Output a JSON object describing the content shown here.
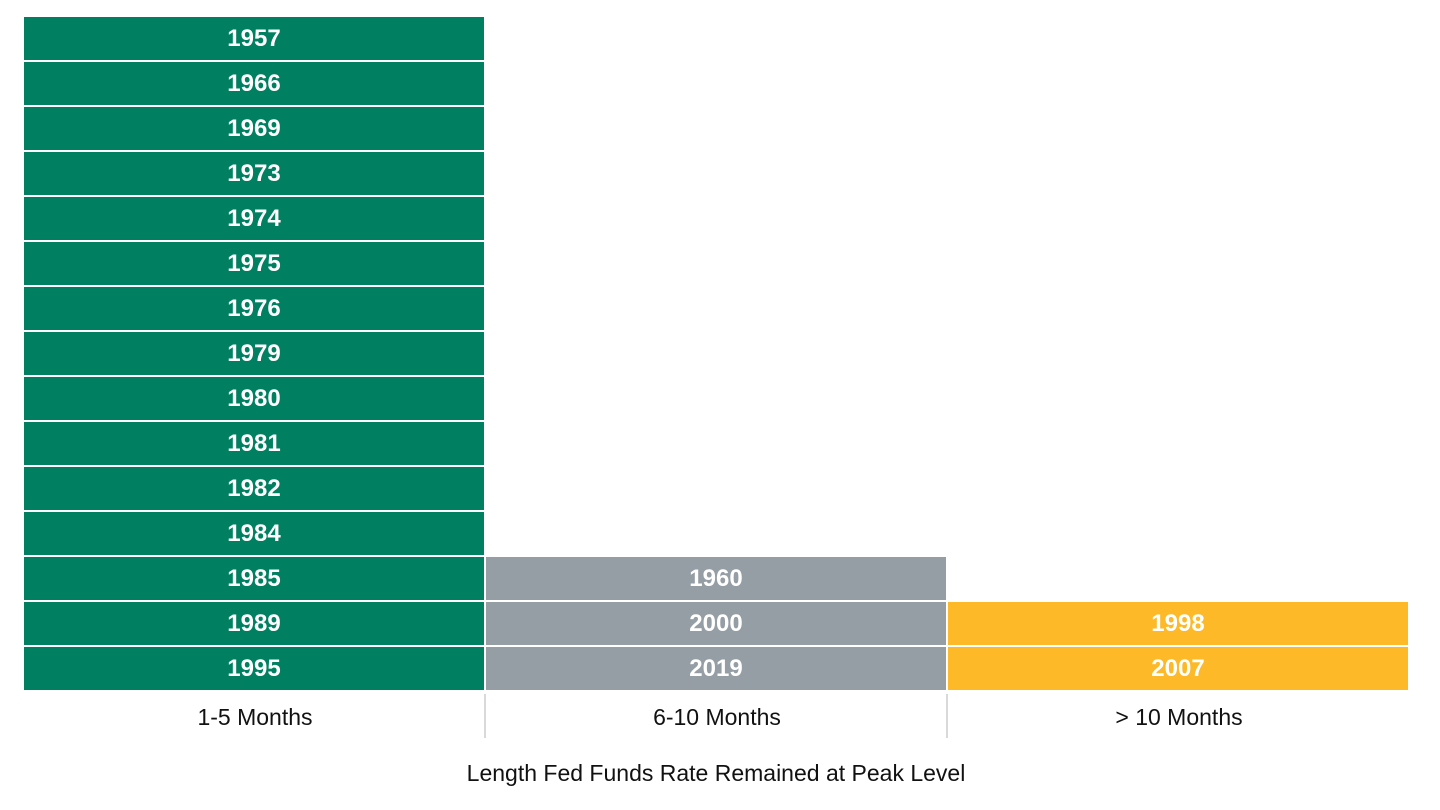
{
  "chart_data": {
    "type": "stacked-block",
    "xlabel": "Length Fed Funds Rate Remained at Peak Level",
    "categories": [
      {
        "name": "1-5 Months",
        "color": "#008060",
        "items": [
          "1957",
          "1966",
          "1969",
          "1973",
          "1974",
          "1975",
          "1976",
          "1979",
          "1980",
          "1981",
          "1982",
          "1984",
          "1985",
          "1989",
          "1995"
        ]
      },
      {
        "name": "6-10 Months",
        "color": "#959ea5",
        "items": [
          "1960",
          "2000",
          "2019"
        ]
      },
      {
        "name": "> 10 Months",
        "color": "#fdb927",
        "items": [
          "1998",
          "2007"
        ]
      }
    ],
    "max_count": 15,
    "grid": false,
    "legend": "none"
  }
}
